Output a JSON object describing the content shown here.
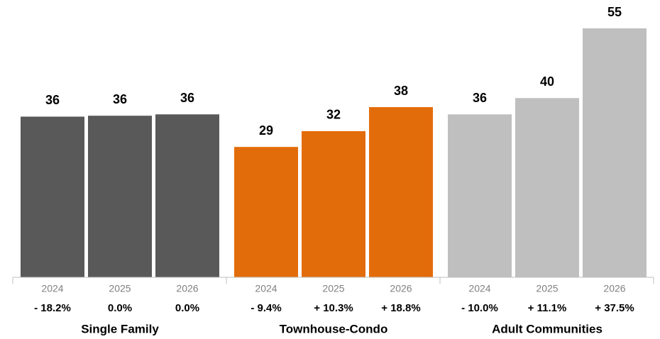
{
  "chart_data": {
    "type": "bar",
    "groups": [
      {
        "name": "Single Family",
        "color": "#595959",
        "categories": [
          "2024",
          "2025",
          "2026"
        ],
        "values": [
          35.5,
          35.7,
          36.0
        ],
        "value_labels": [
          "36",
          "36",
          "36"
        ],
        "changes": [
          "- 18.2%",
          "0.0%",
          "0.0%"
        ]
      },
      {
        "name": "Townhouse-Condo",
        "color": "#e36c0a",
        "categories": [
          "2024",
          "2025",
          "2026"
        ],
        "values": [
          28.8,
          32.3,
          37.6
        ],
        "value_labels": [
          "29",
          "32",
          "38"
        ],
        "changes": [
          "- 9.4%",
          "+ 10.3%",
          "+ 18.8%"
        ]
      },
      {
        "name": "Adult Communities",
        "color": "#bfbfbf",
        "categories": [
          "2024",
          "2025",
          "2026"
        ],
        "values": [
          36.0,
          39.6,
          55
        ],
        "value_labels": [
          "36",
          "40",
          "55"
        ],
        "changes": [
          "- 10.0%",
          "+ 11.1%",
          "+ 37.5%"
        ]
      }
    ]
  }
}
